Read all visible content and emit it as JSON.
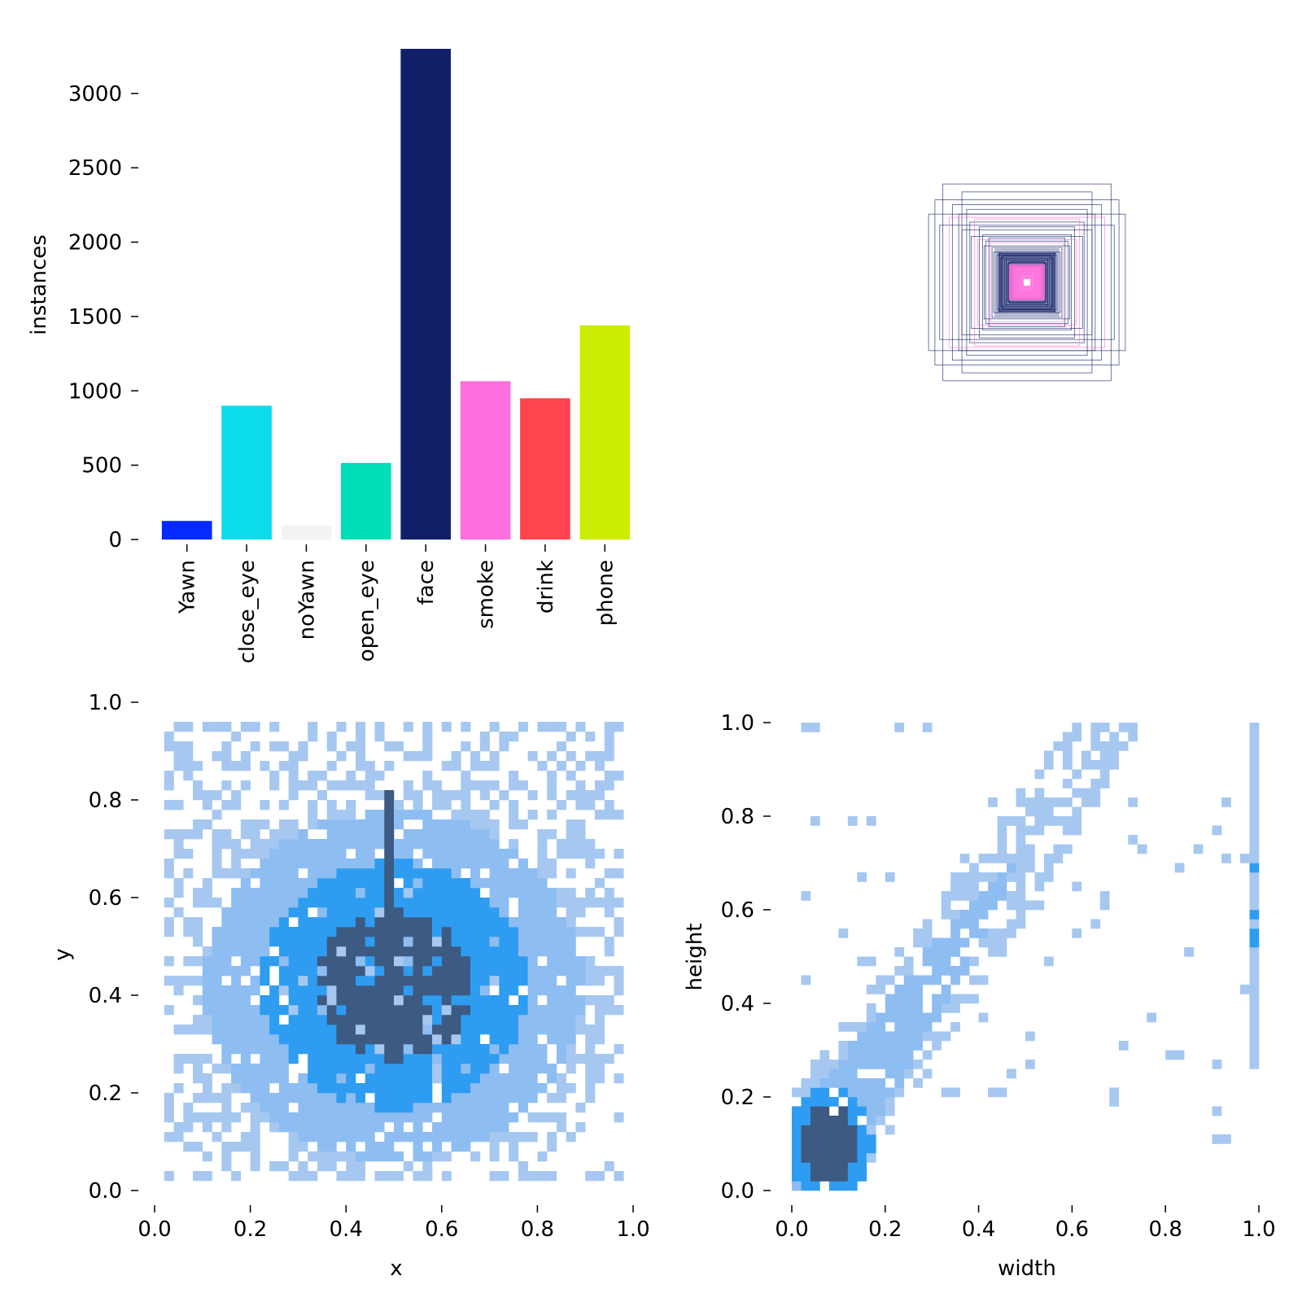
{
  "chart_data": [
    {
      "id": "instances",
      "type": "bar",
      "ylabel": "instances",
      "xlabel": "",
      "ylim": [
        0,
        3300
      ],
      "categories": [
        "Yawn",
        "close_eye",
        "noYawn",
        "open_eye",
        "face",
        "smoke",
        "drink",
        "phone"
      ],
      "values": [
        125,
        900,
        95,
        515,
        3300,
        1065,
        950,
        1440
      ],
      "colors": [
        "#042aff",
        "#0bdbeb",
        "#f3f3f3",
        "#00dfb7",
        "#111f68",
        "#ff6fdd",
        "#ff444f",
        "#cced00"
      ],
      "yticks": [
        0,
        500,
        1000,
        1500,
        2000,
        2500,
        3000
      ],
      "ytick_labels": [
        "0",
        "500",
        "1000",
        "1500",
        "2000",
        "2500",
        "3000"
      ]
    },
    {
      "id": "boxes",
      "type": "box-overlay",
      "description_colors": [
        "#111f68",
        "#ff6fdd"
      ],
      "center": [
        0.5,
        0.5
      ],
      "boxes": [
        {
          "w": 0.53,
          "h": 0.62,
          "color": "#111f68"
        },
        {
          "w": 0.62,
          "h": 0.43,
          "color": "#111f68"
        },
        {
          "w": 0.58,
          "h": 0.52,
          "color": "#111f68"
        },
        {
          "w": 0.41,
          "h": 0.57,
          "color": "#111f68"
        },
        {
          "w": 0.47,
          "h": 0.49,
          "color": "#111f68"
        },
        {
          "w": 0.55,
          "h": 0.36,
          "color": "#111f68"
        },
        {
          "w": 0.43,
          "h": 0.43,
          "color": "#111f68"
        },
        {
          "w": 0.49,
          "h": 0.41,
          "color": "#ff6fdd"
        },
        {
          "w": 0.38,
          "h": 0.46,
          "color": "#111f68"
        },
        {
          "w": 0.36,
          "h": 0.38,
          "color": "#111f68"
        },
        {
          "w": 0.33,
          "h": 0.4,
          "color": "#ff6fdd"
        },
        {
          "w": 0.41,
          "h": 0.33,
          "color": "#111f68"
        },
        {
          "w": 0.3,
          "h": 0.35,
          "color": "#111f68"
        },
        {
          "w": 0.35,
          "h": 0.29,
          "color": "#111f68"
        },
        {
          "w": 0.28,
          "h": 0.3,
          "color": "#111f68"
        },
        {
          "w": 0.31,
          "h": 0.27,
          "color": "#ff6fdd"
        },
        {
          "w": 0.26,
          "h": 0.26,
          "color": "#111f68"
        },
        {
          "w": 0.24,
          "h": 0.28,
          "color": "#111f68"
        },
        {
          "w": 0.27,
          "h": 0.23,
          "color": "#111f68"
        },
        {
          "w": 0.22,
          "h": 0.22,
          "color": "#111f68"
        },
        {
          "w": 0.23,
          "h": 0.25,
          "color": "#ff6fdd"
        },
        {
          "w": 0.2,
          "h": 0.21,
          "color": "#111f68"
        },
        {
          "w": 0.21,
          "h": 0.19,
          "color": "#111f68"
        },
        {
          "w": 0.19,
          "h": 0.2,
          "color": "#111f68"
        },
        {
          "w": 0.18,
          "h": 0.18,
          "color": "#111f68"
        },
        {
          "w": 0.17,
          "h": 0.19,
          "color": "#111f68"
        },
        {
          "w": 0.19,
          "h": 0.17,
          "color": "#111f68"
        },
        {
          "w": 0.16,
          "h": 0.16,
          "color": "#111f68"
        },
        {
          "w": 0.15,
          "h": 0.17,
          "color": "#111f68"
        },
        {
          "w": 0.17,
          "h": 0.15,
          "color": "#111f68"
        },
        {
          "w": 0.14,
          "h": 0.14,
          "color": "#111f68"
        },
        {
          "w": 0.13,
          "h": 0.15,
          "color": "#111f68"
        },
        {
          "w": 0.12,
          "h": 0.12,
          "color": "#111f68"
        },
        {
          "w": 0.11,
          "h": 0.13,
          "color": "#111f68"
        },
        {
          "w": 0.1,
          "h": 0.1,
          "color": "#ff6fdd"
        },
        {
          "w": 0.08,
          "h": 0.09,
          "color": "#ff6fdd"
        },
        {
          "w": 0.06,
          "h": 0.07,
          "color": "#ff6fdd"
        },
        {
          "w": 0.05,
          "h": 0.05,
          "color": "#ff6fdd"
        },
        {
          "w": 0.03,
          "h": 0.03,
          "color": "#ff6fdd"
        }
      ]
    },
    {
      "id": "xy",
      "type": "heatmap",
      "xlabel": "x",
      "ylabel": "y",
      "xlim": [
        0,
        1
      ],
      "ylim": [
        0,
        1
      ],
      "xticks": [
        "0.0",
        "0.2",
        "0.4",
        "0.6",
        "0.8",
        "1.0"
      ],
      "yticks": [
        "0.0",
        "0.2",
        "0.4",
        "0.6",
        "0.8",
        "1.0"
      ],
      "bins": 50,
      "colors": [
        "#a6c8f0",
        "#8ebdf2",
        "#2e9cf0",
        "#3c5a82"
      ]
    },
    {
      "id": "wh",
      "type": "heatmap",
      "xlabel": "width",
      "ylabel": "height",
      "xlim": [
        0,
        1
      ],
      "ylim": [
        0,
        1
      ],
      "xticks": [
        "0.0",
        "0.2",
        "0.4",
        "0.6",
        "0.8",
        "1.0"
      ],
      "yticks": [
        "0.0",
        "0.2",
        "0.4",
        "0.6",
        "0.8",
        "1.0"
      ],
      "bins": 50,
      "colors": [
        "#a6c8f0",
        "#8ebdf2",
        "#2e9cf0",
        "#3c5a82"
      ]
    }
  ]
}
